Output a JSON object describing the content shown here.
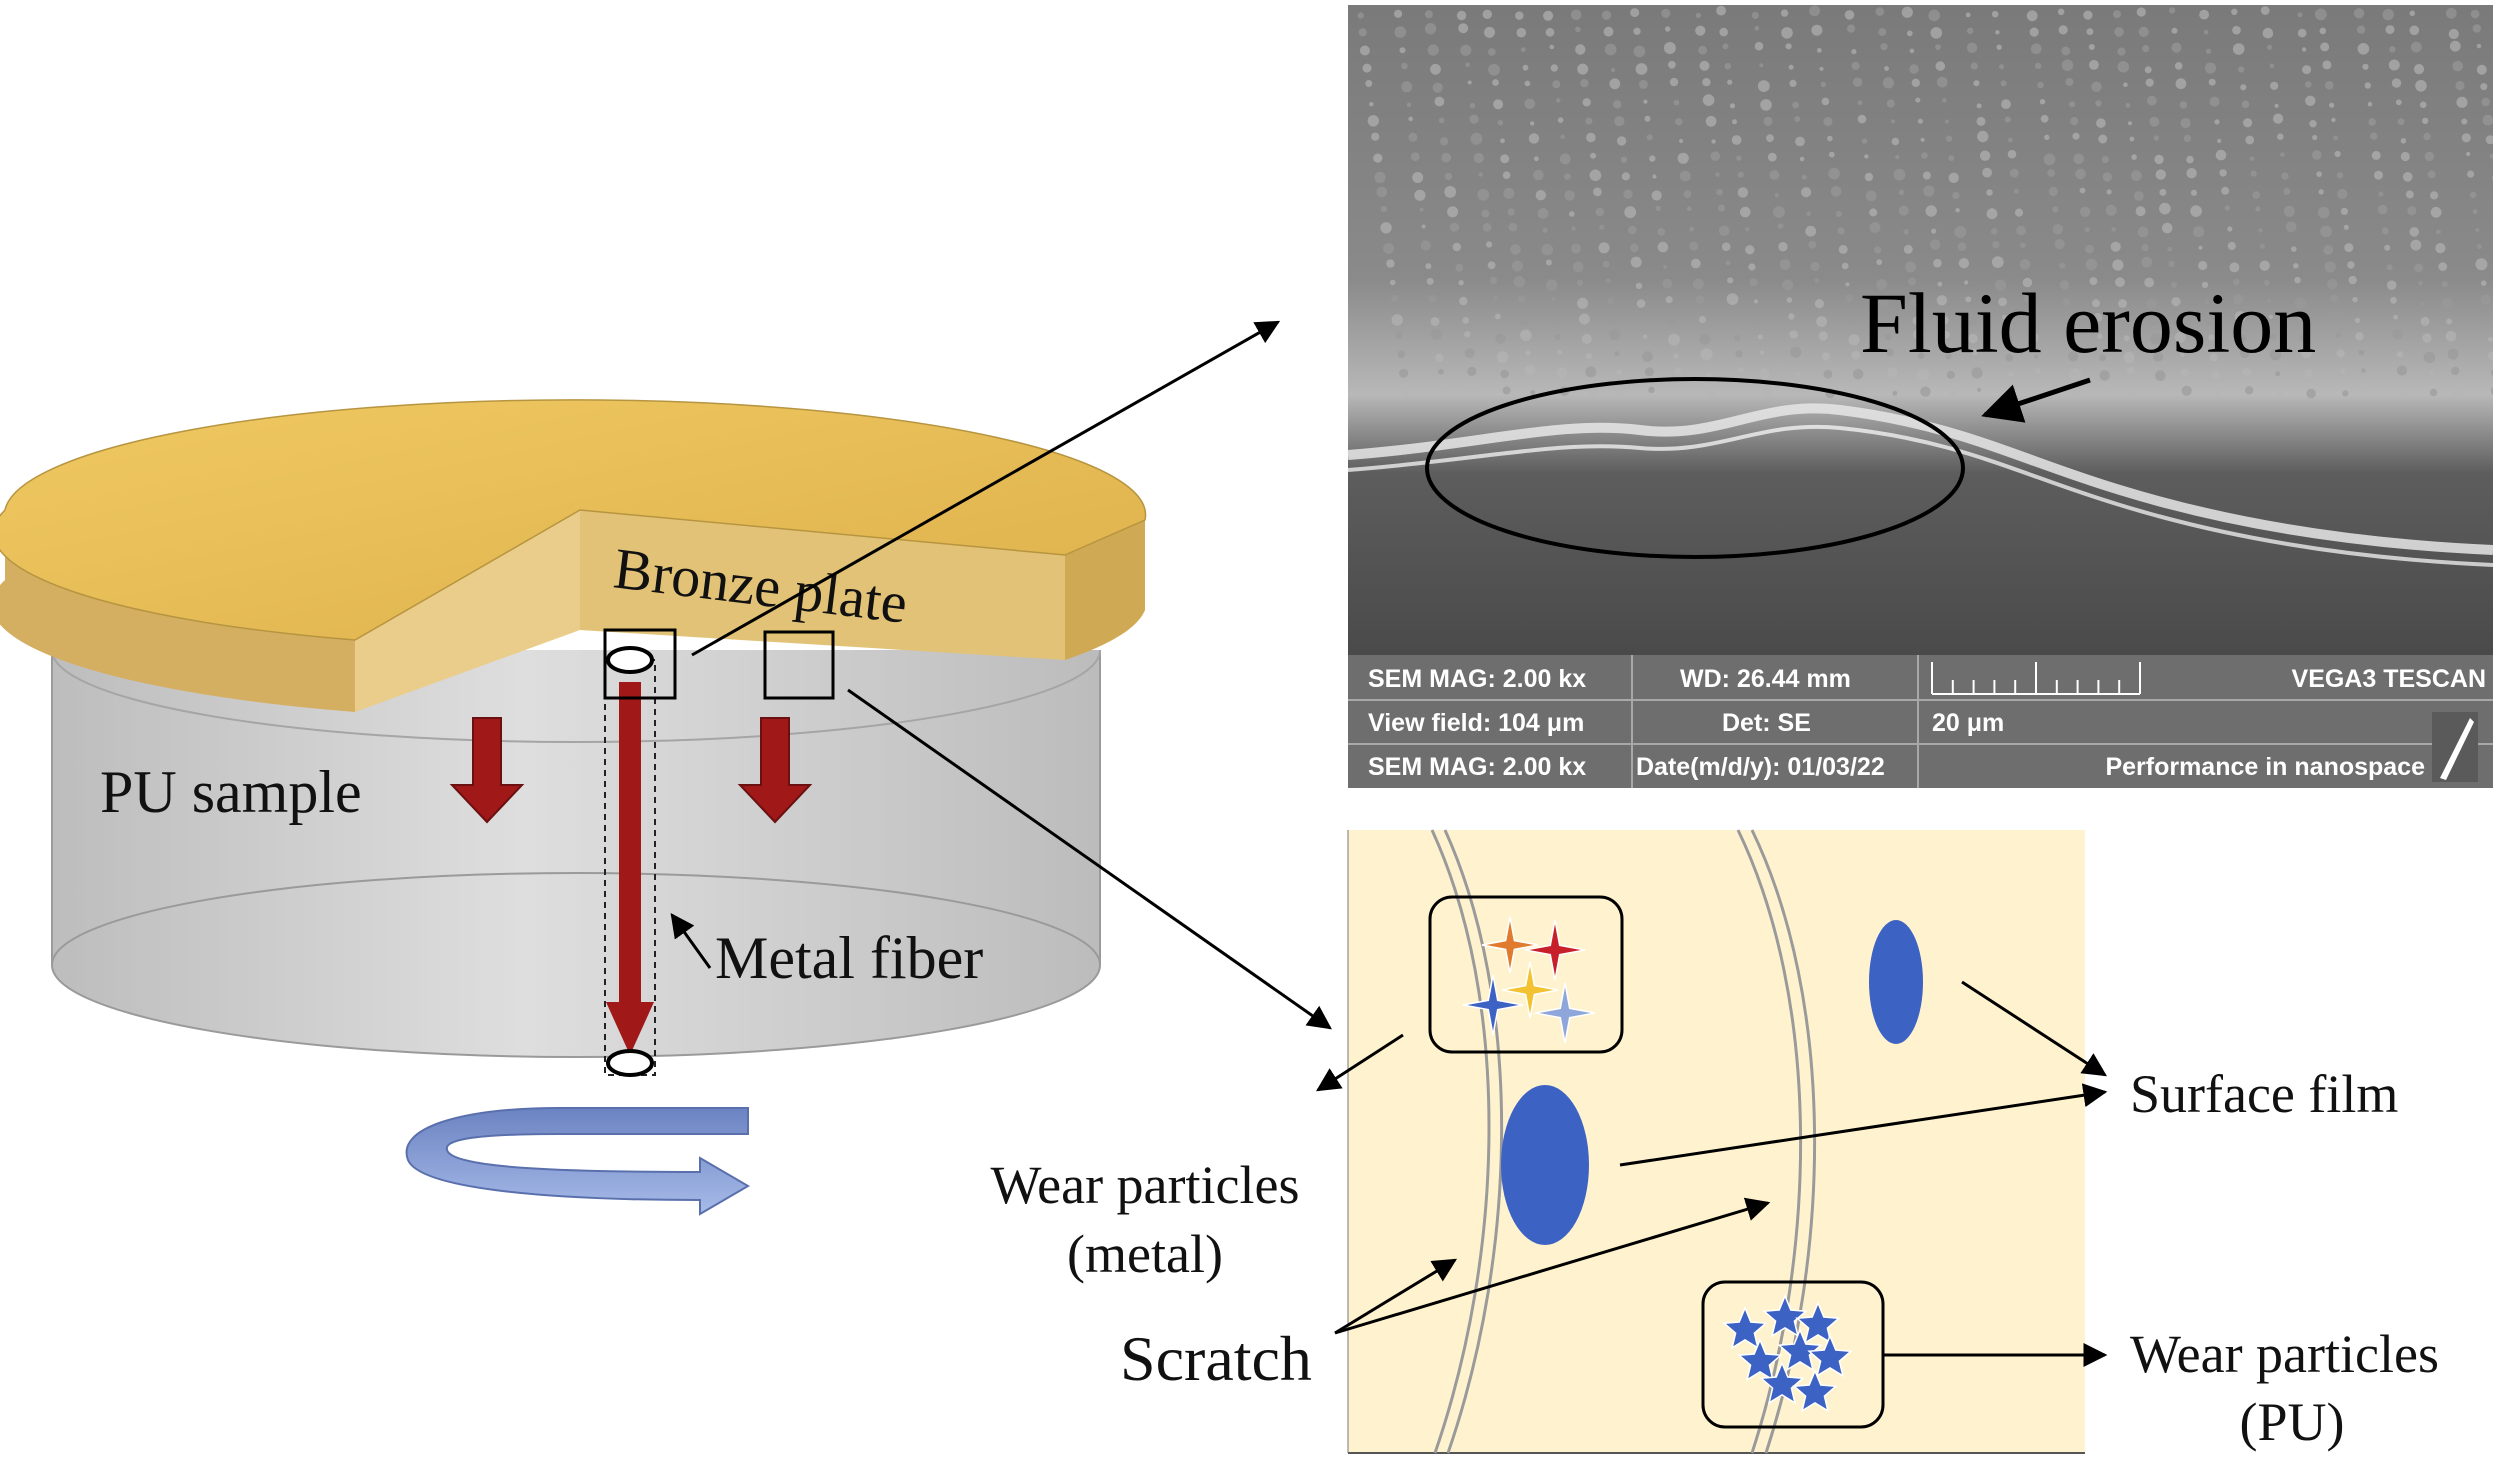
{
  "labels": {
    "bronze_plate": "Bronze plate",
    "pu_sample": "PU sample",
    "metal_fiber": "Metal fiber",
    "fluid_erosion": "Fluid erosion",
    "surface_film": "Surface film",
    "wear_particles_metal_line1": "Wear particles",
    "wear_particles_metal_line2": "(metal)",
    "scratch": "Scratch",
    "wear_particles_pu_line1": "Wear particles",
    "wear_particles_pu_line2": "(PU)"
  },
  "sem_info": {
    "mag_1": "SEM MAG: 2.00 kx",
    "wd": "WD: 26.44 mm",
    "brand": "VEGA3 TESCAN",
    "view_field": "View field: 104 μm",
    "det": "Det: SE",
    "scale": "20 μm",
    "mag_2": "SEM MAG: 2.00 kx",
    "date": "Date(m/d/y): 01/03/22",
    "tagline": "Performance in nanospace"
  },
  "colors": {
    "bronze_top": "#E9BE55",
    "bronze_side": "#D9B86A",
    "pu_body": "#CDCDCD",
    "fiber": "#A01818",
    "arrow_red": "#A01818",
    "rotation_arrow": "#8FA6DA",
    "film_bg": "#FFF3CF",
    "film_particle": "#3C62C4",
    "sem_bar": "#6E6E6E"
  }
}
